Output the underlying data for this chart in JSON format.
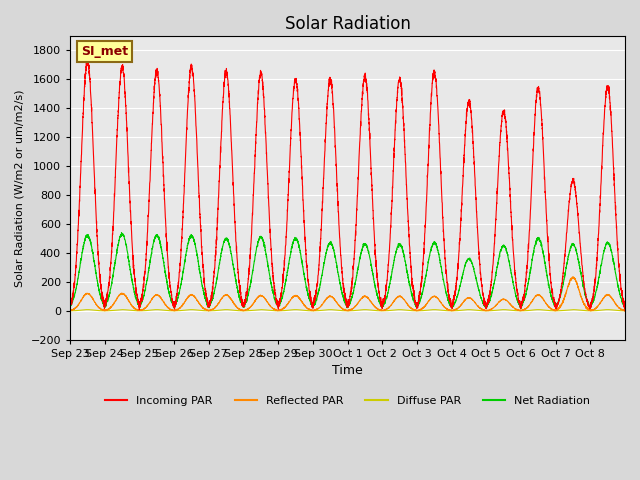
{
  "title": "Solar Radiation",
  "ylabel": "Solar Radiation (W/m2 or um/m2/s)",
  "xlabel": "Time",
  "ylim": [
    -200,
    1900
  ],
  "yticks": [
    -200,
    0,
    200,
    400,
    600,
    800,
    1000,
    1200,
    1400,
    1600,
    1800
  ],
  "x_tick_labels": [
    "Sep 23",
    "Sep 24",
    "Sep 25",
    "Sep 26",
    "Sep 27",
    "Sep 28",
    "Sep 29",
    "Sep 30",
    "Oct 1",
    "Oct 2",
    "Oct 3",
    "Oct 4",
    "Oct 5",
    "Oct 6",
    "Oct 7",
    "Oct 8"
  ],
  "station_label": "SI_met",
  "fig_bg_color": "#d8d8d8",
  "plot_bg_color": "#e8e8e8",
  "colors": {
    "incoming": "#ff0000",
    "reflected": "#ff8800",
    "diffuse": "#cccc00",
    "net": "#00cc00"
  },
  "legend": [
    "Incoming PAR",
    "Reflected PAR",
    "Diffuse PAR",
    "Net Radiation"
  ],
  "n_days": 16,
  "peaks_incoming": [
    1720,
    1680,
    1660,
    1680,
    1650,
    1640,
    1600,
    1600,
    1620,
    1600,
    1650,
    1450,
    1380,
    1540,
    900,
    1550
  ],
  "peaks_green": [
    520,
    530,
    520,
    520,
    500,
    510,
    500,
    470,
    460,
    460,
    470,
    360,
    450,
    500,
    460,
    470
  ],
  "peaks_orange": [
    120,
    120,
    110,
    110,
    110,
    105,
    105,
    100,
    100,
    100,
    100,
    90,
    80,
    110,
    230,
    110
  ],
  "valley_net": -70
}
